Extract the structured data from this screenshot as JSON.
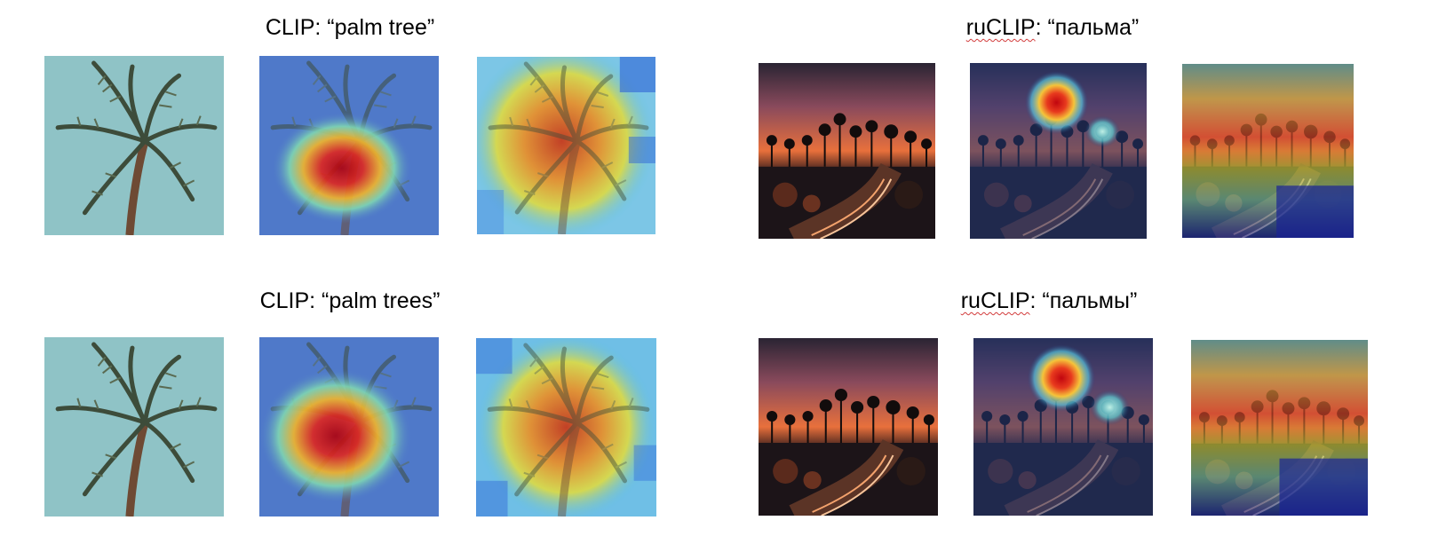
{
  "titles": {
    "clip_palm_tree": {
      "prefix": "CLIP",
      "rest": ": “palm tree”"
    },
    "ruclip_palma": {
      "prefix": "ruCLIP",
      "rest": ": “пальма”"
    },
    "clip_palm_trees": {
      "prefix": "CLIP",
      "rest": ": “palm trees”"
    },
    "ruclip_palmy": {
      "prefix": "ruCLIP",
      "rest": ": “пальмы”"
    }
  },
  "colors": {
    "teal_sky": "#8fc3c6",
    "heat_blue": "#4f79c9",
    "heat_red": "#d21f1f",
    "sunset_orange": "#e8703c",
    "night_dark": "#1c1418"
  }
}
